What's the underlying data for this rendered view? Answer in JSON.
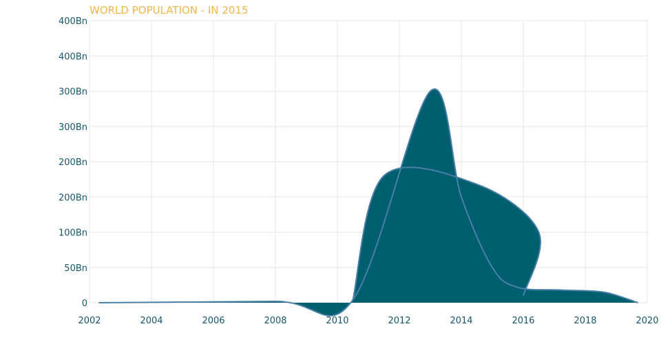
{
  "chart_data": {
    "type": "area",
    "title": "WORLD POPULATION - IN 2015",
    "xlabel": "",
    "ylabel": "",
    "xlim": [
      2002,
      2020
    ],
    "ylim": [
      0,
      400
    ],
    "grid": true,
    "x_ticks": [
      "2002",
      "2004",
      "2006",
      "2008",
      "2010",
      "2012",
      "2014",
      "2016",
      "2018",
      "2020"
    ],
    "y_ticks": [
      "0",
      "50Bn",
      "100Bn",
      "200Bn",
      "200Bn",
      "300Bn",
      "300Bn",
      "400Bn",
      "400Bn"
    ],
    "colors": {
      "fill": "#005f6e",
      "line": "#4a7fa8",
      "title": "#f2b64a",
      "tick": "#15566b",
      "grid": "#e6e6e6"
    },
    "series": [
      {
        "values": [
          {
            "x": 2002.3,
            "y": 0
          },
          {
            "x": 2008,
            "y": 2
          },
          {
            "x": 2010.5,
            "y": 4
          },
          {
            "x": 2013,
            "y": 300
          },
          {
            "x": 2014,
            "y": 150
          },
          {
            "x": 2015,
            "y": 50
          },
          {
            "x": 2015.8,
            "y": 22
          },
          {
            "x": 2017.2,
            "y": 18
          },
          {
            "x": 2018.6,
            "y": 15
          },
          {
            "x": 2019.7,
            "y": 0
          }
        ]
      },
      {
        "values": [
          {
            "x": 2010.5,
            "y": 4
          },
          {
            "x": 2011.5,
            "y": 180
          },
          {
            "x": 2014.5,
            "y": 168
          },
          {
            "x": 2016.5,
            "y": 100
          },
          {
            "x": 2016,
            "y": 10
          }
        ]
      }
    ]
  }
}
